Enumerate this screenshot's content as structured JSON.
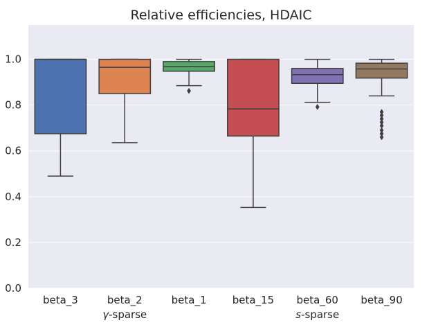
{
  "chart_data": {
    "type": "box",
    "title": "Relative efficiencies, HDAIC",
    "xlabel": "",
    "ylabel": "",
    "ylim": [
      0.0,
      1.15
    ],
    "yticks": [
      "0.0",
      "0.2",
      "0.4",
      "0.6",
      "0.8",
      "1.0"
    ],
    "grid": true,
    "categories": [
      "beta_3",
      "beta_2",
      "beta_1",
      "beta_15",
      "beta_60",
      "beta_90"
    ],
    "group_labels": [
      {
        "prefix": "",
        "italic": "γ",
        "suffix": "-sparse",
        "under": "beta_2"
      },
      {
        "prefix": "",
        "italic": "s",
        "suffix": "-sparse",
        "under": "beta_60"
      }
    ],
    "boxes": [
      {
        "name": "beta_3",
        "whislo": 0.49,
        "q1": 0.675,
        "med": 1.0,
        "q3": 1.0,
        "whishi": 1.0,
        "fliers": [],
        "color": "#4c72b0"
      },
      {
        "name": "beta_2",
        "whislo": 0.636,
        "q1": 0.85,
        "med": 0.965,
        "q3": 1.0,
        "whishi": 1.0,
        "fliers": [],
        "color": "#dd8452"
      },
      {
        "name": "beta_1",
        "whislo": 0.885,
        "q1": 0.948,
        "med": 0.968,
        "q3": 0.99,
        "whishi": 1.0,
        "fliers": [
          0.862
        ],
        "color": "#55a868"
      },
      {
        "name": "beta_15",
        "whislo": 0.353,
        "q1": 0.665,
        "med": 0.783,
        "q3": 1.0,
        "whishi": 1.0,
        "fliers": [],
        "color": "#c44e52"
      },
      {
        "name": "beta_60",
        "whislo": 0.812,
        "q1": 0.895,
        "med": 0.933,
        "q3": 0.96,
        "whishi": 1.0,
        "fliers": [
          0.792
        ],
        "color": "#8172b3"
      },
      {
        "name": "beta_90",
        "whislo": 0.84,
        "q1": 0.918,
        "med": 0.958,
        "q3": 0.983,
        "whishi": 1.0,
        "fliers": [
          0.77,
          0.755,
          0.74,
          0.725,
          0.71,
          0.69,
          0.675,
          0.66
        ],
        "color": "#937860"
      }
    ],
    "colors": {
      "background": "#eaeaf2",
      "gridline": "#ffffff",
      "line": "#3f3f3f"
    }
  }
}
